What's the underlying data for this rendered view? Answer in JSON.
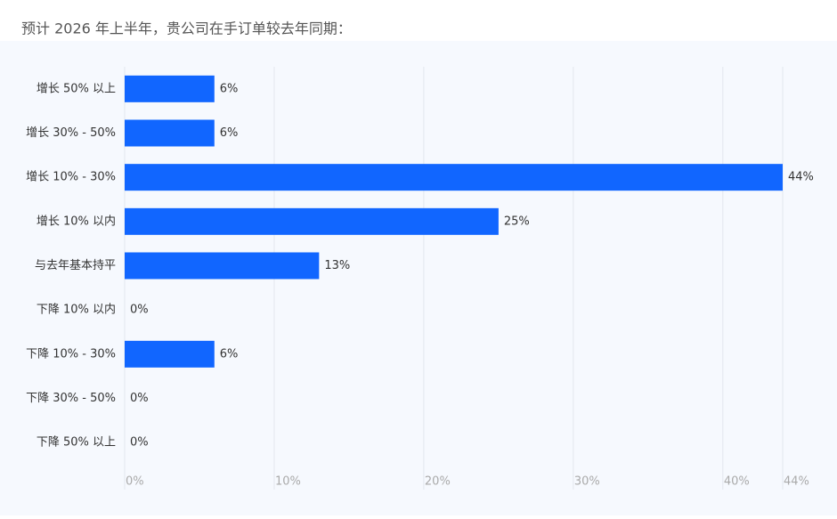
{
  "chart_data": {
    "type": "bar",
    "orientation": "horizontal",
    "title": "预计 2026 年上半年，贵公司在手订单较去年同期：",
    "categories": [
      "增长 50% 以上",
      "增长 30% - 50%",
      "增长 10% - 30%",
      "增长 10% 以内",
      "与去年基本持平",
      "下降 10% 以内",
      "下降 10% - 30%",
      "下降 30% - 50%",
      "下降 50% 以上"
    ],
    "values": [
      6,
      6,
      44,
      25,
      13,
      0,
      6,
      0,
      0
    ],
    "value_labels": [
      "6%",
      "6%",
      "44%",
      "25%",
      "13%",
      "0%",
      "6%",
      "0%",
      "0%"
    ],
    "color": "#1166ff",
    "xlim": [
      0,
      44
    ],
    "xticks": [
      {
        "value": 0,
        "label": "0%"
      },
      {
        "value": 10,
        "label": "10%"
      },
      {
        "value": 20,
        "label": "20%"
      },
      {
        "value": 30,
        "label": "30%"
      },
      {
        "value": 40,
        "label": "40%"
      },
      {
        "value": 44,
        "label": "44%"
      }
    ],
    "grid": true
  }
}
